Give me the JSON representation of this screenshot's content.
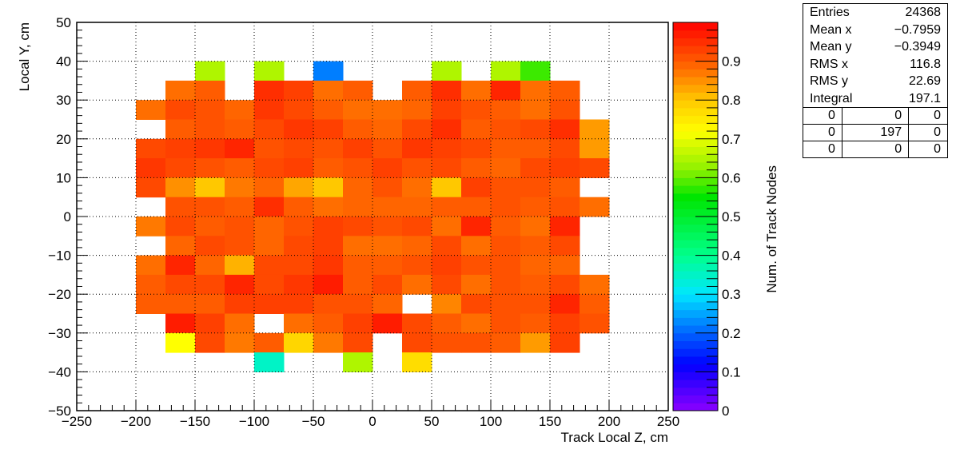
{
  "chart_data": {
    "type": "heatmap",
    "xlabel": "Track Local Z, cm",
    "ylabel": "Local Y, cm",
    "zlabel": "Num. of Track Nodes",
    "xlim": [
      -250,
      250
    ],
    "ylim": [
      -50,
      50
    ],
    "zlim": [
      0,
      1
    ],
    "x_ticks": [
      "−250",
      "−200",
      "−150",
      "−100",
      "−50",
      "0",
      "50",
      "100",
      "150",
      "200",
      "250"
    ],
    "y_ticks": [
      "−50",
      "−40",
      "−30",
      "−20",
      "−10",
      "0",
      "10",
      "20",
      "30",
      "40",
      "50"
    ],
    "z_ticks": [
      "0",
      "0.1",
      "0.2",
      "0.3",
      "0.4",
      "0.5",
      "0.6",
      "0.7",
      "0.8",
      "0.9"
    ],
    "bin_width_x": 25,
    "bin_width_y": 5,
    "x_edges_start": -200,
    "y_rows_top": 35,
    "grid": true,
    "rows": [
      [
        null,
        null,
        0.65,
        null,
        0.65,
        null,
        0.22,
        null,
        null,
        null,
        0.65,
        null,
        0.65,
        0.58,
        null,
        null
      ],
      [
        null,
        0.88,
        0.9,
        null,
        0.95,
        0.93,
        0.88,
        0.9,
        null,
        0.9,
        0.95,
        0.88,
        0.96,
        0.88,
        0.9,
        null
      ],
      [
        0.88,
        0.92,
        0.91,
        0.89,
        0.94,
        0.92,
        0.9,
        0.88,
        0.88,
        0.89,
        0.93,
        0.91,
        0.9,
        0.88,
        0.91,
        null
      ],
      [
        null,
        0.9,
        0.91,
        0.9,
        0.92,
        0.94,
        0.93,
        0.9,
        0.89,
        0.92,
        0.95,
        0.9,
        0.91,
        0.92,
        0.95,
        0.84
      ],
      [
        0.92,
        0.93,
        0.94,
        0.96,
        0.91,
        0.92,
        0.91,
        0.93,
        0.91,
        0.94,
        0.93,
        0.92,
        0.9,
        0.9,
        0.92,
        0.84
      ],
      [
        0.94,
        0.92,
        0.91,
        0.9,
        0.92,
        0.93,
        0.9,
        0.91,
        0.93,
        0.91,
        0.92,
        0.9,
        0.89,
        0.92,
        0.93,
        0.92
      ],
      [
        0.92,
        0.85,
        0.8,
        0.87,
        0.89,
        0.83,
        0.8,
        0.89,
        0.91,
        0.88,
        0.8,
        0.93,
        0.91,
        0.91,
        0.9,
        null
      ],
      [
        null,
        0.91,
        0.91,
        0.9,
        0.95,
        0.9,
        0.88,
        0.89,
        0.89,
        0.89,
        0.9,
        0.9,
        0.91,
        0.9,
        0.91,
        0.88
      ],
      [
        0.87,
        0.92,
        0.9,
        0.91,
        0.89,
        0.91,
        0.93,
        0.92,
        0.91,
        0.92,
        0.88,
        0.96,
        0.9,
        0.88,
        0.96,
        null
      ],
      [
        null,
        0.89,
        0.92,
        0.91,
        0.89,
        0.92,
        0.93,
        0.88,
        0.88,
        0.89,
        0.92,
        0.88,
        0.91,
        0.9,
        0.92,
        null
      ],
      [
        0.88,
        0.96,
        0.89,
        0.82,
        0.92,
        0.92,
        0.94,
        0.9,
        0.9,
        0.91,
        0.93,
        0.91,
        0.91,
        0.89,
        0.89,
        null
      ],
      [
        0.9,
        0.92,
        0.92,
        0.96,
        0.92,
        0.94,
        0.97,
        0.9,
        0.92,
        0.88,
        0.92,
        0.88,
        0.91,
        0.9,
        0.92,
        0.88
      ],
      [
        0.9,
        0.9,
        0.9,
        0.93,
        0.93,
        0.93,
        0.91,
        0.91,
        0.89,
        null,
        0.86,
        0.92,
        0.91,
        0.91,
        0.96,
        0.9
      ],
      [
        null,
        0.97,
        0.93,
        0.88,
        null,
        0.88,
        0.9,
        0.93,
        0.97,
        0.92,
        0.9,
        0.88,
        0.91,
        0.9,
        0.93,
        0.91
      ],
      [
        null,
        0.72,
        0.92,
        0.87,
        0.9,
        0.78,
        0.87,
        0.92,
        null,
        0.92,
        0.91,
        0.91,
        0.9,
        0.84,
        0.93,
        null
      ],
      [
        null,
        null,
        null,
        null,
        0.35,
        null,
        null,
        0.65,
        null,
        0.77,
        null,
        null,
        null,
        null,
        null,
        null
      ]
    ]
  },
  "stats": {
    "rows": [
      {
        "label": "Entries",
        "value": "24368"
      },
      {
        "label": "Mean x",
        "value": "−0.7959"
      },
      {
        "label": "Mean y",
        "value": "−0.3949"
      },
      {
        "label": "RMS x",
        "value": "116.8"
      },
      {
        "label": "RMS y",
        "value": "22.69"
      },
      {
        "label": "Integral",
        "value": "197.1"
      }
    ],
    "grid": [
      [
        "0",
        "0",
        "0"
      ],
      [
        "0",
        "197",
        "0"
      ],
      [
        "0",
        "0",
        "0"
      ]
    ]
  }
}
